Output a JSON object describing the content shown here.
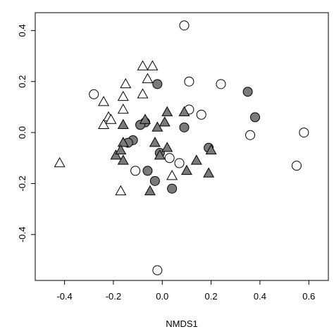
{
  "chart_data": {
    "type": "scatter",
    "title": "",
    "xlabel": "NMDS1",
    "ylabel": "",
    "xlim": [
      -0.52,
      0.68
    ],
    "ylim": [
      -0.58,
      0.47
    ],
    "xticks": [
      -0.4,
      -0.2,
      0.0,
      0.2,
      0.4,
      0.6
    ],
    "xtick_labels": [
      "-0.4",
      "-0.2",
      "0.0",
      "0.2",
      "0.4",
      "0.6"
    ],
    "yticks": [
      -0.4,
      -0.2,
      0.0,
      0.2,
      0.4
    ],
    "ytick_labels": [
      "-0.4",
      "-0.2",
      "0.0",
      "0.2",
      "0.4"
    ],
    "grid": false,
    "legend": "none",
    "series": [
      {
        "marker": "circle-open",
        "fill": "#ffffff",
        "stroke": "#000000",
        "points": [
          [
            0.09,
            0.42
          ],
          [
            0.11,
            0.2
          ],
          [
            0.24,
            0.19
          ],
          [
            -0.28,
            0.15
          ],
          [
            0.11,
            0.09
          ],
          [
            0.16,
            0.07
          ],
          [
            0.58,
            0.0
          ],
          [
            0.36,
            -0.01
          ],
          [
            0.55,
            -0.13
          ],
          [
            -0.11,
            -0.15
          ],
          [
            0.07,
            -0.12
          ],
          [
            0.03,
            -0.1
          ],
          [
            -0.02,
            -0.54
          ]
        ]
      },
      {
        "marker": "circle-filled",
        "fill": "#7a7a7a",
        "stroke": "#000000",
        "points": [
          [
            -0.02,
            0.19
          ],
          [
            0.35,
            0.16
          ],
          [
            0.38,
            0.06
          ],
          [
            0.09,
            0.02
          ],
          [
            -0.07,
            0.04
          ],
          [
            -0.09,
            0.03
          ],
          [
            -0.12,
            -0.03
          ],
          [
            -0.14,
            -0.04
          ],
          [
            -0.01,
            -0.08
          ],
          [
            0.19,
            -0.06
          ],
          [
            -0.06,
            -0.15
          ],
          [
            -0.03,
            -0.19
          ],
          [
            0.04,
            -0.22
          ]
        ]
      },
      {
        "marker": "triangle-open",
        "fill": "#ffffff",
        "stroke": "#000000",
        "points": [
          [
            -0.08,
            0.26
          ],
          [
            -0.04,
            0.26
          ],
          [
            -0.06,
            0.21
          ],
          [
            -0.15,
            0.19
          ],
          [
            -0.24,
            0.12
          ],
          [
            -0.16,
            0.14
          ],
          [
            -0.08,
            0.15
          ],
          [
            -0.16,
            0.09
          ],
          [
            -0.22,
            0.06
          ],
          [
            -0.21,
            0.05
          ],
          [
            -0.24,
            0.03
          ],
          [
            -0.42,
            -0.12
          ],
          [
            -0.17,
            -0.23
          ],
          [
            0.04,
            -0.17
          ]
        ]
      },
      {
        "marker": "triangle-filled",
        "fill": "#7a7a7a",
        "stroke": "#000000",
        "points": [
          [
            0.02,
            0.08
          ],
          [
            0.09,
            0.08
          ],
          [
            -0.07,
            0.05
          ],
          [
            0.01,
            0.04
          ],
          [
            -0.16,
            0.03
          ],
          [
            -0.02,
            0.02
          ],
          [
            -0.16,
            -0.04
          ],
          [
            -0.03,
            -0.04
          ],
          [
            -0.19,
            -0.09
          ],
          [
            -0.17,
            -0.07
          ],
          [
            -0.16,
            -0.11
          ],
          [
            0.02,
            -0.06
          ],
          [
            0.2,
            -0.07
          ],
          [
            -0.01,
            -0.09
          ],
          [
            0.14,
            -0.11
          ],
          [
            0.1,
            -0.15
          ],
          [
            0.19,
            -0.16
          ],
          [
            -0.05,
            -0.23
          ]
        ]
      }
    ]
  }
}
